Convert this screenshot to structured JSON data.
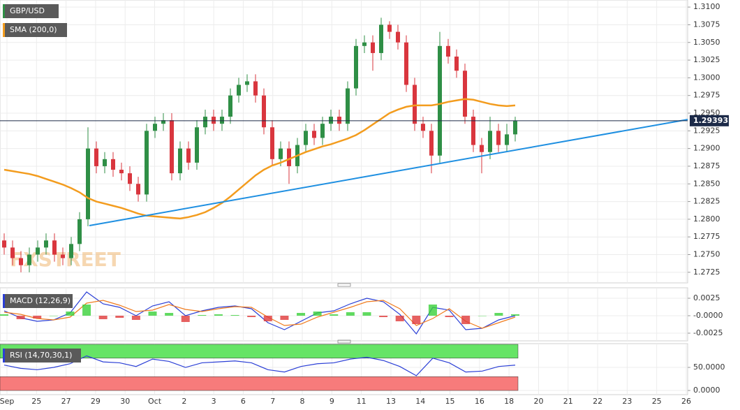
{
  "chart_data": [
    {
      "type": "candlestick",
      "series": [
        {
          "name": "GBP/USD",
          "color": "#2f8f46",
          "down_color": "#d9363e",
          "open": [
            1.277,
            1.276,
            1.2745,
            1.2735,
            1.275,
            1.276,
            1.277,
            1.275,
            1.2745,
            1.2765,
            1.28,
            1.29,
            1.2875,
            1.2885,
            1.287,
            1.2865,
            1.285,
            1.2835,
            1.2925,
            1.2935,
            1.294,
            1.2865,
            1.29,
            1.288,
            1.293,
            1.2945,
            1.2935,
            1.2945,
            1.2975,
            1.299,
            1.2995,
            1.2975,
            1.293,
            1.2885,
            1.29,
            1.2875,
            1.2905,
            1.2925,
            1.2915,
            1.2935,
            1.2945,
            1.2935,
            1.2985,
            1.3045,
            1.305,
            1.3035,
            1.3075,
            1.3065,
            1.305,
            1.299,
            1.2935,
            1.2925,
            1.289,
            1.3045,
            1.303,
            1.301,
            1.2945,
            1.2905,
            1.2895,
            1.2925,
            1.2905,
            1.292
          ],
          "high": [
            1.278,
            1.277,
            1.2755,
            1.276,
            1.277,
            1.278,
            1.278,
            1.276,
            1.2775,
            1.281,
            1.293,
            1.291,
            1.2895,
            1.2895,
            1.288,
            1.2875,
            1.286,
            1.2935,
            1.2945,
            1.295,
            1.295,
            1.291,
            1.291,
            1.294,
            1.2955,
            1.2955,
            1.2955,
            1.2985,
            1.3,
            1.3005,
            1.3005,
            1.2985,
            1.294,
            1.291,
            1.291,
            1.2915,
            1.2935,
            1.2935,
            1.2945,
            1.2955,
            1.2955,
            1.2995,
            1.3055,
            1.306,
            1.306,
            1.3085,
            1.308,
            1.3075,
            1.306,
            1.3,
            1.2945,
            1.2935,
            1.3065,
            1.3055,
            1.304,
            1.302,
            1.2955,
            1.2915,
            1.2945,
            1.2935,
            1.2935,
            1.2945
          ],
          "low": [
            1.275,
            1.2735,
            1.2725,
            1.2725,
            1.274,
            1.275,
            1.274,
            1.2735,
            1.2735,
            1.2755,
            1.279,
            1.2865,
            1.2865,
            1.286,
            1.2855,
            1.284,
            1.2825,
            1.2825,
            1.2915,
            1.2925,
            1.2855,
            1.2855,
            1.287,
            1.287,
            1.292,
            1.2925,
            1.2925,
            1.2935,
            1.2965,
            1.298,
            1.2965,
            1.292,
            1.2875,
            1.2875,
            1.285,
            1.2865,
            1.2895,
            1.2905,
            1.2905,
            1.2925,
            1.2925,
            1.2925,
            1.2975,
            1.3035,
            1.301,
            1.3025,
            1.3055,
            1.304,
            1.298,
            1.2925,
            1.2915,
            1.2865,
            1.288,
            1.302,
            1.3,
            1.2935,
            1.2895,
            1.2865,
            1.2885,
            1.2895,
            1.2895,
            1.291
          ],
          "close": [
            1.276,
            1.2745,
            1.2735,
            1.275,
            1.276,
            1.277,
            1.275,
            1.2745,
            1.2765,
            1.28,
            1.29,
            1.2875,
            1.2885,
            1.287,
            1.2865,
            1.285,
            1.2835,
            1.2925,
            1.2935,
            1.294,
            1.2865,
            1.29,
            1.288,
            1.293,
            1.2945,
            1.2935,
            1.2945,
            1.2975,
            1.299,
            1.2995,
            1.2975,
            1.293,
            1.2885,
            1.29,
            1.2875,
            1.2905,
            1.2925,
            1.2915,
            1.2935,
            1.2945,
            1.2935,
            1.2985,
            1.3045,
            1.305,
            1.3035,
            1.3075,
            1.3065,
            1.305,
            1.299,
            1.2935,
            1.2925,
            1.289,
            1.3045,
            1.303,
            1.301,
            1.2945,
            1.2905,
            1.2895,
            1.2925,
            1.2905,
            1.292,
            1.2939
          ]
        },
        {
          "name": "SMA (200,0)",
          "color": "#f39c1e",
          "type": "line",
          "values": [
            1.287,
            1.2868,
            1.2866,
            1.2864,
            1.2861,
            1.2857,
            1.2853,
            1.2849,
            1.2844,
            1.2838,
            1.283,
            1.2825,
            1.2822,
            1.2819,
            1.2816,
            1.2812,
            1.2808,
            1.2805,
            1.2804,
            1.2803,
            1.2802,
            1.2801,
            1.2803,
            1.2806,
            1.281,
            1.2816,
            1.2823,
            1.2832,
            1.2842,
            1.2852,
            1.2862,
            1.287,
            1.2876,
            1.288,
            1.2885,
            1.289,
            1.2895,
            1.2899,
            1.2903,
            1.2906,
            1.291,
            1.2914,
            1.2919,
            1.2926,
            1.2934,
            1.2942,
            1.295,
            1.2955,
            1.2959,
            1.2961,
            1.2961,
            1.2961,
            1.2963,
            1.2966,
            1.2968,
            1.297,
            1.2969,
            1.2966,
            1.2963,
            1.2961,
            1.296,
            1.2961
          ]
        }
      ],
      "trendline": {
        "values": [
          1.2791,
          1.2941
        ],
        "color": "#1e8fe1"
      },
      "last_price": 1.29393,
      "watermark": "FXSTREET",
      "ylim": [
        1.271,
        1.311
      ],
      "yticks": [
        {
          "value": 1.31,
          "label": "1.3100"
        },
        1.3075,
        {
          "value": 1.305,
          "label": "1.3050"
        },
        1.3025,
        {
          "value": 1.3,
          "label": "1.3000"
        },
        1.2975,
        {
          "value": 1.295,
          "label": "1.2950"
        },
        1.2925,
        {
          "value": 1.29,
          "label": "1.2900"
        },
        1.2875,
        {
          "value": 1.285,
          "label": "1.2850"
        },
        1.2825,
        {
          "value": 1.28,
          "label": "1.2800"
        },
        1.2775,
        {
          "value": 1.275,
          "label": "1.2750"
        },
        1.2725
      ],
      "x_labels": [
        "Sep",
        "25",
        "27",
        "29",
        "30",
        "Oct",
        "2",
        "3",
        "6",
        "7",
        "8",
        "9",
        "11",
        "13",
        "14",
        "15",
        "16",
        "18",
        "20",
        "21",
        "22",
        "23",
        "25",
        "26"
      ],
      "grid": true
    },
    {
      "type": "macd",
      "title": "MACD (12,26,9)",
      "series": [
        {
          "name": "MACD",
          "color": "#2b3fd6",
          "values": [
            0.0007,
            -0.0003,
            -0.0008,
            -0.0006,
            0.0004,
            0.0034,
            0.0017,
            0.0012,
            0.0,
            0.0014,
            0.002,
            0.0,
            0.0007,
            0.0012,
            0.0014,
            0.001,
            -0.001,
            -0.002,
            -0.0008,
            0.0004,
            0.0007,
            0.0017,
            0.0025,
            0.002,
            0.0002,
            -0.0026,
            0.0012,
            0.0008,
            -0.002,
            -0.0018,
            -0.0006,
            0.0
          ]
        },
        {
          "name": "Signal",
          "color": "#f07b1d",
          "values": [
            0.0005,
            0.0002,
            -0.0004,
            -0.0006,
            -0.0002,
            0.0018,
            0.0022,
            0.0015,
            0.0006,
            0.0008,
            0.0016,
            0.0009,
            0.0006,
            0.001,
            0.0013,
            0.0012,
            -0.0002,
            -0.0014,
            -0.0012,
            -0.0002,
            0.0005,
            0.0012,
            0.002,
            0.0022,
            0.001,
            -0.0014,
            -0.0004,
            0.001,
            -0.0008,
            -0.0018,
            -0.001,
            -0.0002
          ]
        },
        {
          "name": "Histogram",
          "color": "#3ad13a",
          "down_color": "#e03a3a",
          "values": [
            0.0002,
            -0.0005,
            -0.0004,
            0.0,
            0.0006,
            0.0016,
            -0.0005,
            -0.0003,
            -0.0006,
            0.0006,
            0.0004,
            -0.0009,
            0.0001,
            0.0002,
            0.0001,
            -0.0002,
            -0.0008,
            -0.0006,
            0.0004,
            0.0006,
            0.0002,
            0.0005,
            0.0005,
            -0.0002,
            -0.0008,
            -0.0012,
            0.0016,
            -0.0002,
            -0.0012,
            0.0,
            0.0004,
            0.0002
          ]
        }
      ],
      "ylim": [
        -0.0036,
        0.004
      ],
      "yticks": [
        0.0025,
        {
          "value": 0,
          "label": "-0.0000"
        },
        -0.0025
      ],
      "grid": true
    },
    {
      "type": "rsi",
      "title": "RSI (14,70,30,1)",
      "series": [
        {
          "name": "RSI",
          "color": "#2b3fd6",
          "values": [
            55,
            48,
            45,
            50,
            58,
            75,
            62,
            60,
            52,
            68,
            63,
            50,
            60,
            62,
            64,
            60,
            45,
            40,
            52,
            58,
            60,
            68,
            72,
            65,
            52,
            32,
            70,
            60,
            40,
            42,
            52,
            55
          ]
        }
      ],
      "zones": [
        {
          "from": 70,
          "to": 100,
          "color": "#66e466"
        },
        {
          "from": 0,
          "to": 30,
          "color": "#f77b7b"
        }
      ],
      "ylim": [
        -9,
        101.5
      ],
      "yticks": [
        {
          "value": 50,
          "label": "50.0000"
        },
        {
          "value": 0,
          "label": "0.0000"
        }
      ],
      "grid": true
    }
  ]
}
